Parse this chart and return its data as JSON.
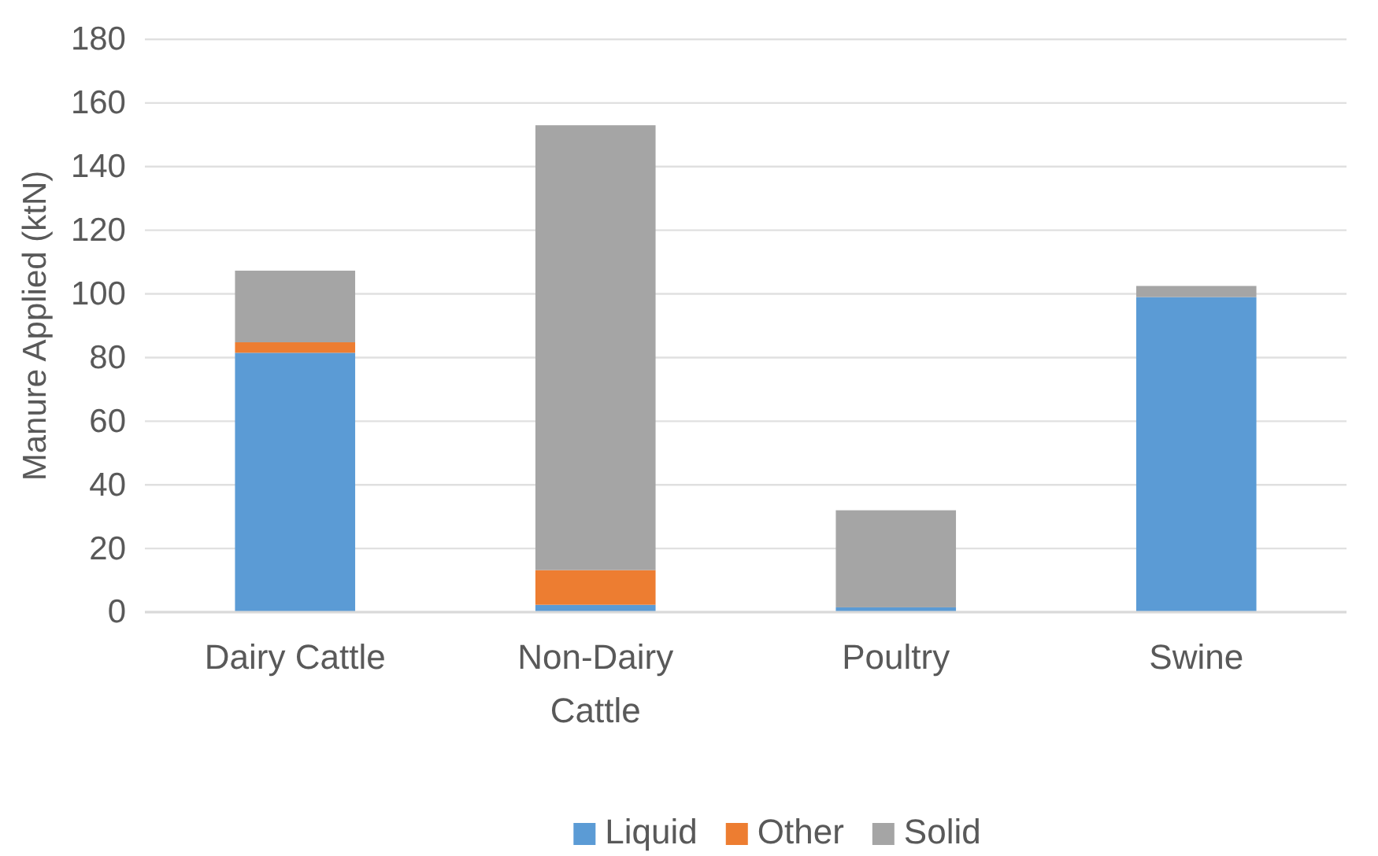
{
  "chart_data": {
    "type": "bar",
    "stacked": true,
    "ylabel": "Manure Applied (ktN)",
    "categories": [
      "Dairy Cattle",
      "Non-Dairy Cattle",
      "Poultry",
      "Swine"
    ],
    "series": [
      {
        "name": "Liquid",
        "color": "#5b9bd5",
        "values": [
          81.5,
          2.3,
          1.5,
          99
        ]
      },
      {
        "name": "Other",
        "color": "#ed7d31",
        "values": [
          3.3,
          10.9,
          0,
          0
        ]
      },
      {
        "name": "Solid",
        "color": "#a5a5a5",
        "values": [
          22.5,
          139.8,
          30.5,
          3.5
        ]
      }
    ],
    "ylim": [
      0,
      180
    ],
    "yticks": [
      0,
      20,
      40,
      60,
      80,
      100,
      120,
      140,
      160,
      180
    ],
    "grid": "y",
    "legend": "bottom"
  }
}
